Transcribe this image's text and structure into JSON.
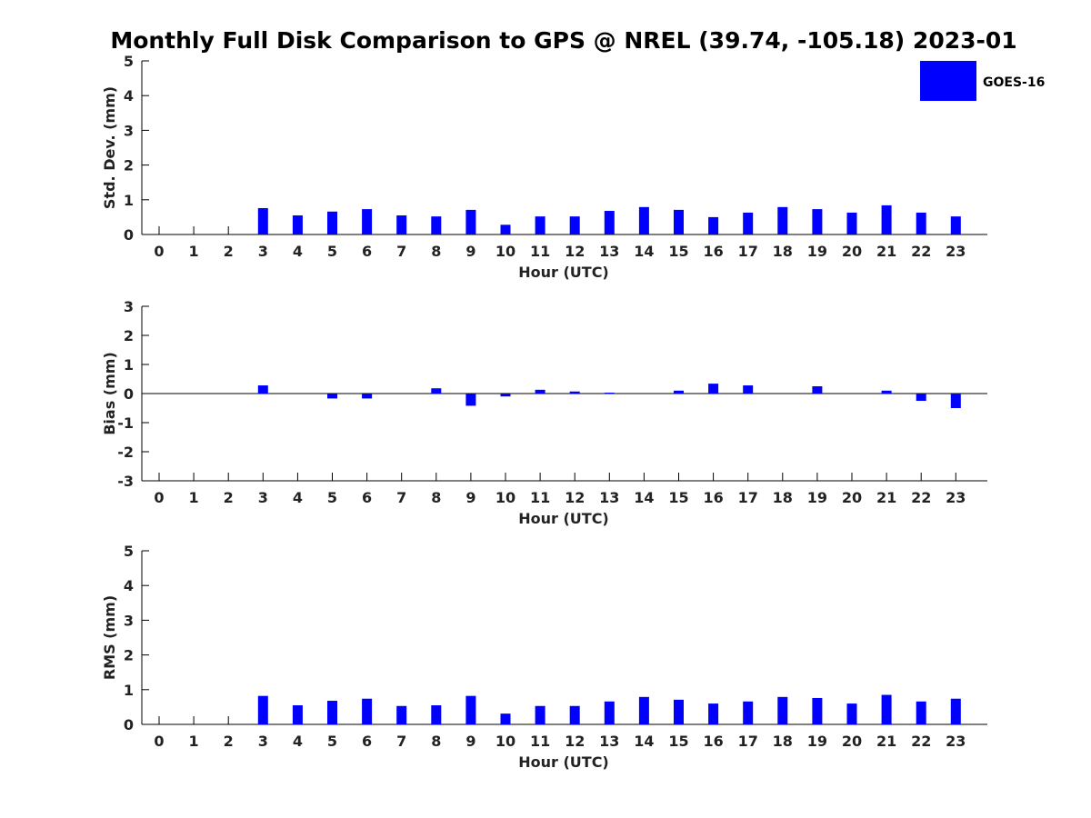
{
  "title": "Monthly Full Disk Comparison to GPS @ NREL (39.74, -105.18) 2023-01",
  "colors": {
    "bar": "#0000ff",
    "axis": "#000000",
    "text": "#222222"
  },
  "chart_data": [
    {
      "type": "bar",
      "xlabel": "Hour (UTC)",
      "ylabel": "Std. Dev. (mm)",
      "ylim": [
        0,
        5
      ],
      "yticks": [
        0,
        1,
        2,
        3,
        4,
        5
      ],
      "categories": [
        "0",
        "1",
        "2",
        "3",
        "4",
        "5",
        "6",
        "7",
        "8",
        "9",
        "10",
        "11",
        "12",
        "13",
        "14",
        "15",
        "16",
        "17",
        "18",
        "19",
        "20",
        "21",
        "22",
        "23"
      ],
      "series": [
        {
          "name": "GOES-16",
          "values": [
            null,
            null,
            null,
            0.76,
            0.55,
            0.66,
            0.73,
            0.55,
            0.52,
            0.71,
            0.28,
            0.52,
            0.52,
            0.68,
            0.79,
            0.71,
            0.5,
            0.63,
            0.79,
            0.73,
            0.63,
            0.84,
            0.63,
            0.52
          ]
        }
      ],
      "legend": {
        "entries": [
          "GOES-16"
        ],
        "position": "top-right"
      }
    },
    {
      "type": "bar",
      "xlabel": "Hour (UTC)",
      "ylabel": "Bias (mm)",
      "ylim": [
        -3,
        3
      ],
      "yticks": [
        -3,
        -2,
        -1,
        0,
        1,
        2,
        3
      ],
      "zero_line": true,
      "categories": [
        "0",
        "1",
        "2",
        "3",
        "4",
        "5",
        "6",
        "7",
        "8",
        "9",
        "10",
        "11",
        "12",
        "13",
        "14",
        "15",
        "16",
        "17",
        "18",
        "19",
        "20",
        "21",
        "22",
        "23"
      ],
      "series": [
        {
          "name": "GOES-16",
          "values": [
            null,
            null,
            null,
            0.28,
            0.0,
            -0.17,
            -0.17,
            0.0,
            0.18,
            -0.42,
            -0.1,
            0.13,
            0.07,
            0.03,
            0.0,
            0.1,
            0.34,
            0.28,
            0.0,
            0.25,
            0.0,
            0.1,
            -0.25,
            -0.5
          ]
        }
      ]
    },
    {
      "type": "bar",
      "xlabel": "Hour (UTC)",
      "ylabel": "RMS (mm)",
      "ylim": [
        0,
        5
      ],
      "yticks": [
        0,
        1,
        2,
        3,
        4,
        5
      ],
      "categories": [
        "0",
        "1",
        "2",
        "3",
        "4",
        "5",
        "6",
        "7",
        "8",
        "9",
        "10",
        "11",
        "12",
        "13",
        "14",
        "15",
        "16",
        "17",
        "18",
        "19",
        "20",
        "21",
        "22",
        "23"
      ],
      "series": [
        {
          "name": "GOES-16",
          "values": [
            null,
            null,
            null,
            0.82,
            0.55,
            0.68,
            0.74,
            0.53,
            0.55,
            0.82,
            0.31,
            0.53,
            0.53,
            0.66,
            0.79,
            0.71,
            0.6,
            0.66,
            0.79,
            0.76,
            0.6,
            0.85,
            0.66,
            0.74
          ]
        }
      ]
    }
  ]
}
